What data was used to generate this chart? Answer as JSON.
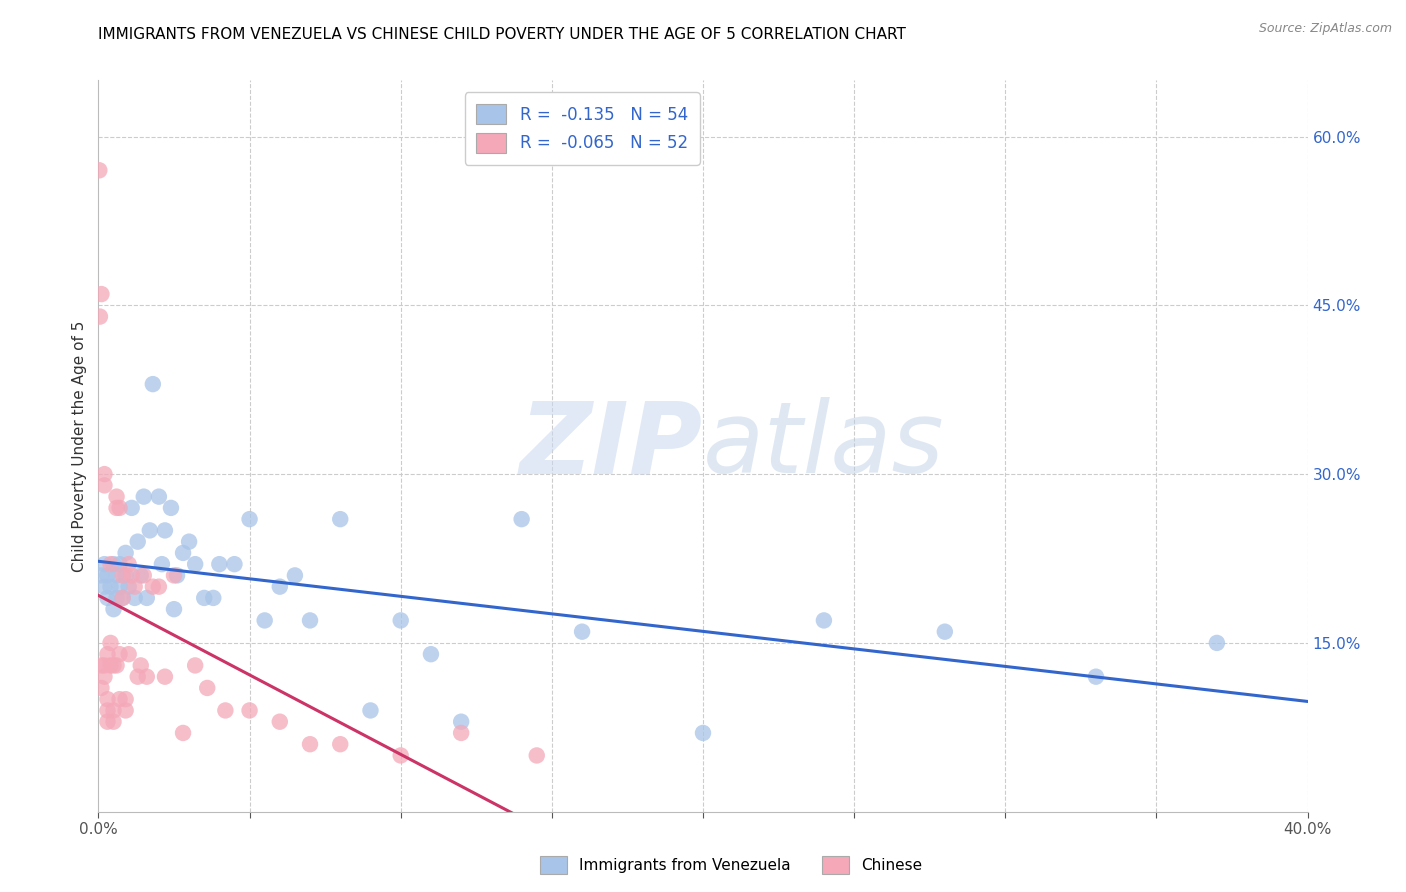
{
  "title": "IMMIGRANTS FROM VENEZUELA VS CHINESE CHILD POVERTY UNDER THE AGE OF 5 CORRELATION CHART",
  "source": "Source: ZipAtlas.com",
  "xlabel": "",
  "ylabel": "Child Poverty Under the Age of 5",
  "xlim": [
    0.0,
    0.4
  ],
  "ylim": [
    0.0,
    0.65
  ],
  "xticks": [
    0.0,
    0.05,
    0.1,
    0.15,
    0.2,
    0.25,
    0.3,
    0.35,
    0.4
  ],
  "yticks_right": [
    0.15,
    0.3,
    0.45,
    0.6
  ],
  "ytick_right_labels": [
    "15.0%",
    "30.0%",
    "45.0%",
    "60.0%"
  ],
  "blue_R": "-0.135",
  "blue_N": "54",
  "pink_R": "-0.065",
  "pink_N": "52",
  "blue_label": "Immigrants from Venezuela",
  "pink_label": "Chinese",
  "blue_color": "#a8c4e8",
  "pink_color": "#f4a8b8",
  "blue_line_color": "#3366cc",
  "pink_line_color": "#cc3366",
  "watermark_zip": "ZIP",
  "watermark_atlas": "atlas",
  "blue_scatter_x": [
    0.001,
    0.002,
    0.002,
    0.003,
    0.003,
    0.004,
    0.005,
    0.005,
    0.006,
    0.006,
    0.007,
    0.007,
    0.008,
    0.009,
    0.009,
    0.01,
    0.011,
    0.012,
    0.013,
    0.014,
    0.015,
    0.016,
    0.017,
    0.018,
    0.02,
    0.021,
    0.022,
    0.024,
    0.025,
    0.026,
    0.028,
    0.03,
    0.032,
    0.035,
    0.038,
    0.04,
    0.045,
    0.05,
    0.055,
    0.06,
    0.065,
    0.07,
    0.08,
    0.09,
    0.1,
    0.11,
    0.12,
    0.14,
    0.16,
    0.2,
    0.24,
    0.28,
    0.33,
    0.37
  ],
  "blue_scatter_y": [
    0.21,
    0.2,
    0.22,
    0.19,
    0.21,
    0.2,
    0.18,
    0.22,
    0.21,
    0.19,
    0.2,
    0.22,
    0.19,
    0.21,
    0.23,
    0.2,
    0.27,
    0.19,
    0.24,
    0.21,
    0.28,
    0.19,
    0.25,
    0.38,
    0.28,
    0.22,
    0.25,
    0.27,
    0.18,
    0.21,
    0.23,
    0.24,
    0.22,
    0.19,
    0.19,
    0.22,
    0.22,
    0.26,
    0.17,
    0.2,
    0.21,
    0.17,
    0.26,
    0.09,
    0.17,
    0.14,
    0.08,
    0.26,
    0.16,
    0.07,
    0.17,
    0.16,
    0.12,
    0.15
  ],
  "pink_scatter_x": [
    0.0003,
    0.0005,
    0.001,
    0.001,
    0.001,
    0.002,
    0.002,
    0.002,
    0.002,
    0.003,
    0.003,
    0.003,
    0.003,
    0.004,
    0.004,
    0.004,
    0.005,
    0.005,
    0.005,
    0.006,
    0.006,
    0.006,
    0.007,
    0.007,
    0.007,
    0.008,
    0.008,
    0.009,
    0.009,
    0.01,
    0.01,
    0.011,
    0.012,
    0.013,
    0.014,
    0.015,
    0.016,
    0.018,
    0.02,
    0.022,
    0.025,
    0.028,
    0.032,
    0.036,
    0.042,
    0.05,
    0.06,
    0.07,
    0.08,
    0.1,
    0.12,
    0.145
  ],
  "pink_scatter_y": [
    0.57,
    0.44,
    0.46,
    0.13,
    0.11,
    0.3,
    0.29,
    0.13,
    0.12,
    0.09,
    0.08,
    0.1,
    0.14,
    0.22,
    0.13,
    0.15,
    0.13,
    0.08,
    0.09,
    0.27,
    0.28,
    0.13,
    0.27,
    0.14,
    0.1,
    0.19,
    0.21,
    0.09,
    0.1,
    0.22,
    0.14,
    0.21,
    0.2,
    0.12,
    0.13,
    0.21,
    0.12,
    0.2,
    0.2,
    0.12,
    0.21,
    0.07,
    0.13,
    0.11,
    0.09,
    0.09,
    0.08,
    0.06,
    0.06,
    0.05,
    0.07,
    0.05
  ]
}
